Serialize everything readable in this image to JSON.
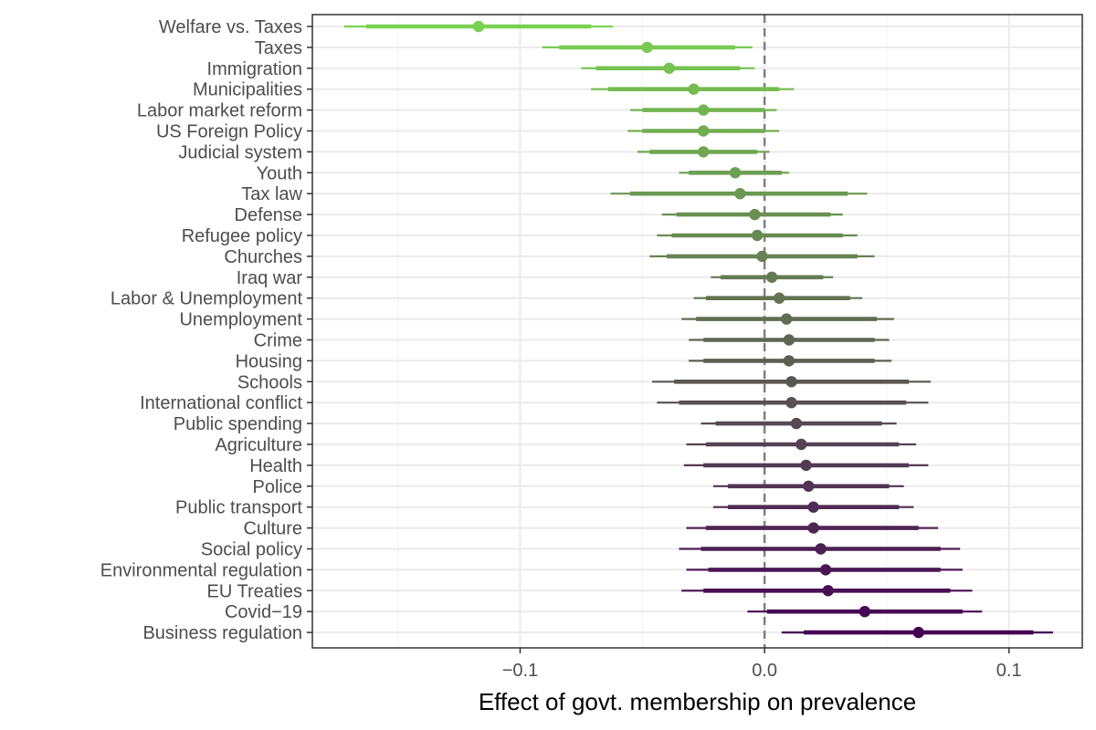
{
  "chart_data": {
    "type": "scatter",
    "xlabel": "Effect of govt. membership on prevalence",
    "xlim": [
      -0.185,
      0.13
    ],
    "xticks": [
      -0.1,
      0.0,
      0.1
    ],
    "xtick_labels": [
      "−0.1",
      "0.0",
      "0.1"
    ],
    "grid": true,
    "reference_line": 0,
    "legend": "none",
    "categories": [
      "Welfare vs. Taxes",
      "Taxes",
      "Immigration",
      "Municipalities",
      "Labor market reform",
      "US Foreign Policy",
      "Judicial system",
      "Youth",
      "Tax law",
      "Defense",
      "Refugee policy",
      "Churches",
      "Iraq war",
      "Labor & Unemployment",
      "Unemployment",
      "Crime",
      "Housing",
      "Schools",
      "International conflict",
      "Public spending",
      "Agriculture",
      "Health",
      "Police",
      "Public transport",
      "Culture",
      "Social policy",
      "Environmental regulation",
      "EU Treaties",
      "Covid−19",
      "Business regulation"
    ],
    "estimates": [
      {
        "est": -0.117,
        "lo90": -0.163,
        "hi90": -0.071,
        "lo95": -0.172,
        "hi95": -0.062
      },
      {
        "est": -0.048,
        "lo90": -0.084,
        "hi90": -0.012,
        "lo95": -0.091,
        "hi95": -0.005
      },
      {
        "est": -0.039,
        "lo90": -0.069,
        "hi90": -0.01,
        "lo95": -0.075,
        "hi95": -0.004
      },
      {
        "est": -0.029,
        "lo90": -0.064,
        "hi90": 0.006,
        "lo95": -0.071,
        "hi95": 0.012
      },
      {
        "est": -0.025,
        "lo90": -0.05,
        "hi90": 0.0,
        "lo95": -0.055,
        "hi95": 0.005
      },
      {
        "est": -0.025,
        "lo90": -0.05,
        "hi90": 0.0,
        "lo95": -0.056,
        "hi95": 0.006
      },
      {
        "est": -0.025,
        "lo90": -0.047,
        "hi90": -0.003,
        "lo95": -0.052,
        "hi95": 0.002
      },
      {
        "est": -0.012,
        "lo90": -0.031,
        "hi90": 0.007,
        "lo95": -0.035,
        "hi95": 0.01
      },
      {
        "est": -0.01,
        "lo90": -0.055,
        "hi90": 0.034,
        "lo95": -0.063,
        "hi95": 0.042
      },
      {
        "est": -0.004,
        "lo90": -0.036,
        "hi90": 0.027,
        "lo95": -0.042,
        "hi95": 0.032
      },
      {
        "est": -0.003,
        "lo90": -0.038,
        "hi90": 0.032,
        "lo95": -0.044,
        "hi95": 0.038
      },
      {
        "est": -0.001,
        "lo90": -0.04,
        "hi90": 0.038,
        "lo95": -0.047,
        "hi95": 0.045
      },
      {
        "est": 0.003,
        "lo90": -0.018,
        "hi90": 0.024,
        "lo95": -0.022,
        "hi95": 0.028
      },
      {
        "est": 0.006,
        "lo90": -0.024,
        "hi90": 0.035,
        "lo95": -0.029,
        "hi95": 0.04
      },
      {
        "est": 0.009,
        "lo90": -0.028,
        "hi90": 0.046,
        "lo95": -0.034,
        "hi95": 0.053
      },
      {
        "est": 0.01,
        "lo90": -0.025,
        "hi90": 0.045,
        "lo95": -0.031,
        "hi95": 0.051
      },
      {
        "est": 0.01,
        "lo90": -0.025,
        "hi90": 0.045,
        "lo95": -0.031,
        "hi95": 0.052
      },
      {
        "est": 0.011,
        "lo90": -0.037,
        "hi90": 0.059,
        "lo95": -0.046,
        "hi95": 0.068
      },
      {
        "est": 0.011,
        "lo90": -0.035,
        "hi90": 0.058,
        "lo95": -0.044,
        "hi95": 0.067
      },
      {
        "est": 0.013,
        "lo90": -0.02,
        "hi90": 0.048,
        "lo95": -0.026,
        "hi95": 0.054
      },
      {
        "est": 0.015,
        "lo90": -0.024,
        "hi90": 0.055,
        "lo95": -0.032,
        "hi95": 0.062
      },
      {
        "est": 0.017,
        "lo90": -0.025,
        "hi90": 0.059,
        "lo95": -0.033,
        "hi95": 0.067
      },
      {
        "est": 0.018,
        "lo90": -0.015,
        "hi90": 0.051,
        "lo95": -0.021,
        "hi95": 0.057
      },
      {
        "est": 0.02,
        "lo90": -0.015,
        "hi90": 0.055,
        "lo95": -0.021,
        "hi95": 0.061
      },
      {
        "est": 0.02,
        "lo90": -0.024,
        "hi90": 0.063,
        "lo95": -0.032,
        "hi95": 0.071
      },
      {
        "est": 0.023,
        "lo90": -0.026,
        "hi90": 0.072,
        "lo95": -0.035,
        "hi95": 0.08
      },
      {
        "est": 0.025,
        "lo90": -0.023,
        "hi90": 0.072,
        "lo95": -0.032,
        "hi95": 0.081
      },
      {
        "est": 0.026,
        "lo90": -0.025,
        "hi90": 0.076,
        "lo95": -0.034,
        "hi95": 0.085
      },
      {
        "est": 0.041,
        "lo90": 0.001,
        "hi90": 0.081,
        "lo95": -0.007,
        "hi95": 0.089
      },
      {
        "est": 0.063,
        "lo90": 0.016,
        "hi90": 0.11,
        "lo95": 0.007,
        "hi95": 0.118
      }
    ],
    "colors": {
      "palette_start": "#7ad151",
      "palette_end": "#440154",
      "grid_major": "#ebebeb",
      "grid_minor": "#f4f4f4",
      "panel_border": "#333333",
      "reference_line": "#808080"
    }
  }
}
